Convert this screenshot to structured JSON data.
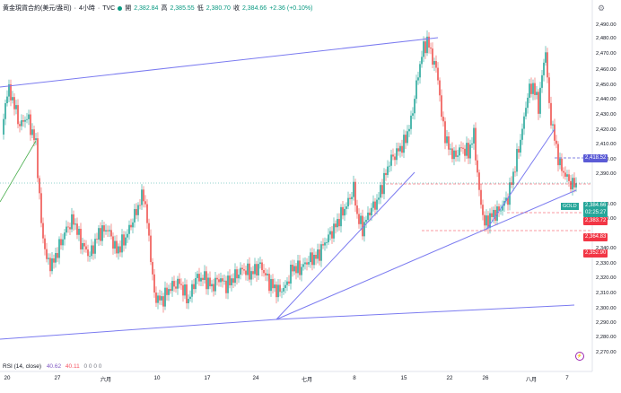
{
  "header": {
    "symbol": "黄金現貨合約(美元/盎司)",
    "interval": "4小時",
    "source": "TVC",
    "open_label": "開",
    "open": "2,382.84",
    "high_label": "高",
    "high": "2,385.55",
    "low_label": "低",
    "low": "2,380.70",
    "close_label": "收",
    "close": "2,384.66",
    "change": "+2.36 (+0.10%)"
  },
  "price_axis": {
    "ticks": [
      "2,490.00",
      "2,480.00",
      "2,470.00",
      "2,460.00",
      "2,450.00",
      "2,440.00",
      "2,430.00",
      "2,420.00",
      "2,410.00",
      "2,400.00",
      "2,390.00",
      "2,370.00",
      "2,360.00",
      "2,340.00",
      "2,330.00",
      "2,320.00",
      "2,310.00",
      "2,300.00",
      "2,290.00",
      "2,280.00",
      "2,270.00"
    ],
    "tags": [
      {
        "label": "2,418.52",
        "color": "#5b5bd6"
      },
      {
        "label": "2,384.66",
        "color": "#26a69a"
      },
      {
        "label": "02:25:27",
        "color": "#26a69a"
      },
      {
        "label": "2,383.72",
        "color": "#f23645"
      },
      {
        "label": "2,364.83",
        "color": "#f23645"
      },
      {
        "label": "2,352.90",
        "color": "#f23645"
      }
    ],
    "symbol_tag": "GOLD"
  },
  "time_axis": {
    "labels": [
      "20",
      "27",
      "六月",
      "10",
      "17",
      "24",
      "七月",
      "8",
      "15",
      "22",
      "26",
      "八月",
      "7"
    ]
  },
  "rsi": {
    "label": "RSI (14, close)",
    "value1": "40.62",
    "value2": "40.11",
    "zeros": "0 0 0 0"
  },
  "colors": {
    "up": "#26a69a",
    "down": "#ef5350",
    "trendline": "#7b7bf0",
    "dash": "#f23645"
  }
}
